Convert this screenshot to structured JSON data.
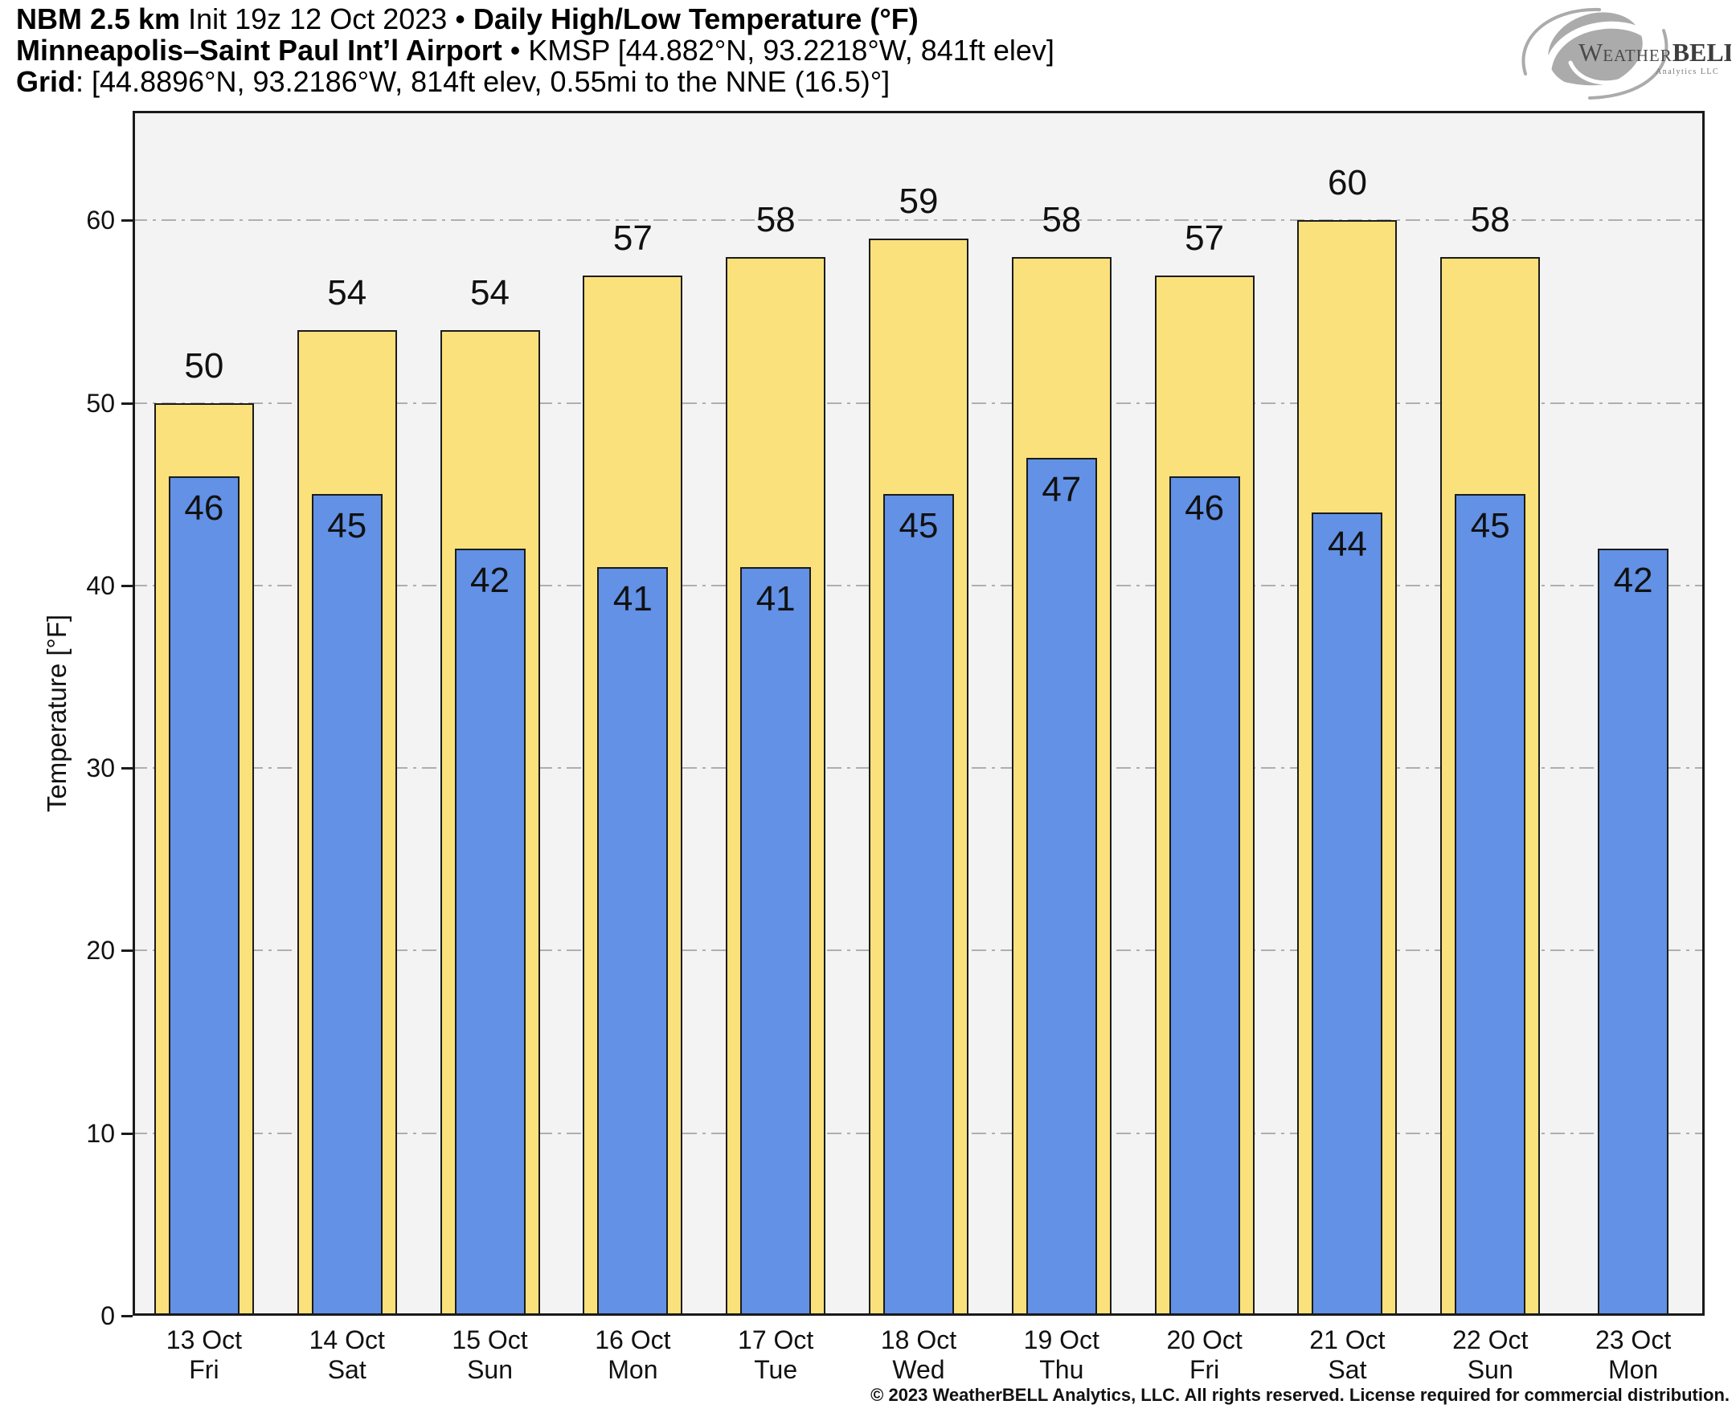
{
  "header": {
    "line1": {
      "model": "NBM 2.5 km",
      "init": " Init 19z 12 Oct 2023 • ",
      "title": "Daily High/Low Temperature (°F)"
    },
    "line2": {
      "station": "Minneapolis–Saint Paul Int’l Airport",
      "details": " • KMSP [44.882°N, 93.2218°W, 841ft elev]"
    },
    "line3": {
      "label": "Grid",
      "details": ": [44.8896°N, 93.2186°W, 814ft elev, 0.55mi to the NNE (16.5)°]"
    }
  },
  "logo": {
    "word_w": "W",
    "word_eather": "EATHER",
    "word_bell": "BELL",
    "sub": "Analytics LLC"
  },
  "footer": {
    "copyright": "© 2023 WeatherBELL Analytics, LLC. All rights reserved. License required for commercial distribution."
  },
  "chart_data": {
    "type": "bar",
    "title": "NBM 2.5 km Daily High/Low Temperature (°F) — Minneapolis–Saint Paul Int’l Airport (KMSP)",
    "ylabel": "Temperature [°F]",
    "xlabel": "",
    "ylim": [
      0,
      66
    ],
    "yticks": [
      0,
      10,
      20,
      30,
      40,
      50,
      60
    ],
    "grid": "horizontal dash-dot gridlines at 10°F intervals",
    "legend_position": "none",
    "plot_background": "#F3F3F3",
    "grid_color": "#AFAFAF",
    "categories": [
      "13 Oct",
      "14 Oct",
      "15 Oct",
      "16 Oct",
      "17 Oct",
      "18 Oct",
      "19 Oct",
      "20 Oct",
      "21 Oct",
      "22 Oct",
      "23 Oct"
    ],
    "day_names": [
      "Fri",
      "Sat",
      "Sun",
      "Mon",
      "Tue",
      "Wed",
      "Thu",
      "Fri",
      "Sat",
      "Sun",
      "Mon"
    ],
    "series": [
      {
        "name": "Daily High",
        "color": "#FAE17C",
        "values": [
          50,
          54,
          54,
          57,
          58,
          59,
          58,
          57,
          60,
          58,
          null
        ]
      },
      {
        "name": "Daily Low",
        "color": "#6291E5",
        "values": [
          46,
          45,
          42,
          41,
          41,
          45,
          47,
          46,
          44,
          45,
          42
        ]
      }
    ]
  }
}
